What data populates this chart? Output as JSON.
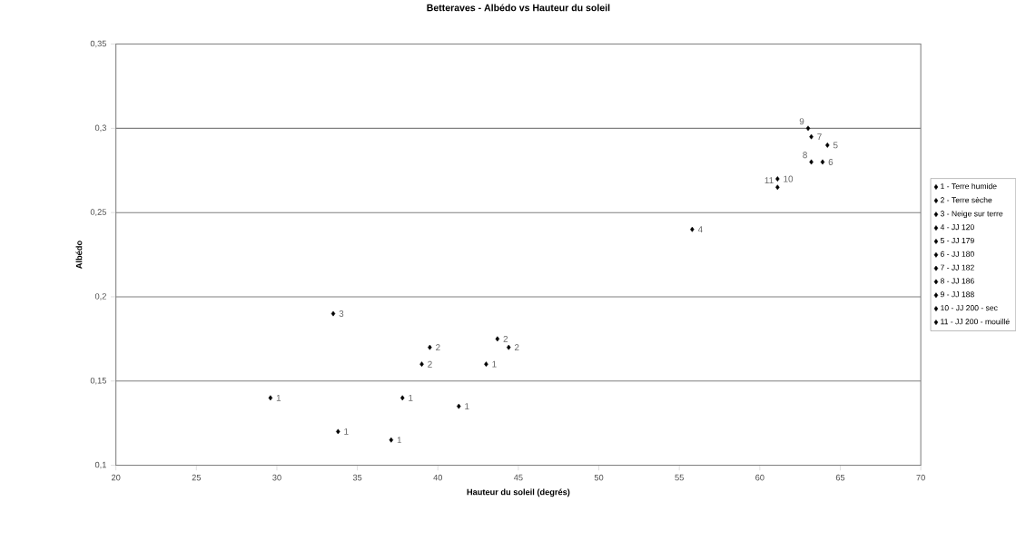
{
  "chart_data": {
    "type": "scatter",
    "title": "Betteraves - Albédo vs Hauteur du soleil",
    "xlabel": "Hauteur du soleil (degrés)",
    "ylabel": "Albédo",
    "xlim": [
      20,
      70
    ],
    "xticks": [
      20,
      25,
      30,
      35,
      40,
      45,
      50,
      55,
      60,
      65,
      70
    ],
    "ylim": [
      0.1,
      0.35
    ],
    "yticks": [
      {
        "value": 0.1,
        "label": "0,1"
      },
      {
        "value": 0.15,
        "label": "0,15"
      },
      {
        "value": 0.2,
        "label": "0,2"
      },
      {
        "value": 0.25,
        "label": "0,25"
      },
      {
        "value": 0.3,
        "label": "0,3"
      },
      {
        "value": 0.35,
        "label": "0,35"
      }
    ],
    "grid": "y",
    "legend": "right",
    "marker": "diamond",
    "series": [
      {
        "name": "1 - Terre humide",
        "color": "#000000",
        "x": [
          29.6,
          33.8,
          37.1,
          37.8,
          41.3,
          43.0
        ],
        "values": [
          0.14,
          0.12,
          0.115,
          0.14,
          0.135,
          0.16
        ]
      },
      {
        "name": "2 - Terre sèche",
        "color": "#000000",
        "x": [
          39.0,
          39.5,
          43.7,
          44.4
        ],
        "values": [
          0.16,
          0.17,
          0.175,
          0.17
        ]
      },
      {
        "name": "3 - Neige sur terre",
        "color": "#000000",
        "x": [
          33.5
        ],
        "values": [
          0.19
        ]
      },
      {
        "name": "4 - JJ 120",
        "color": "#000000",
        "x": [
          55.8
        ],
        "values": [
          0.24
        ]
      },
      {
        "name": "5 - JJ 179",
        "color": "#000000",
        "x": [
          64.2
        ],
        "values": [
          0.29
        ]
      },
      {
        "name": "6 - JJ 180",
        "color": "#000000",
        "x": [
          63.9
        ],
        "values": [
          0.28
        ]
      },
      {
        "name": "7 - JJ 182",
        "color": "#000000",
        "x": [
          63.2
        ],
        "values": [
          0.295
        ]
      },
      {
        "name": "8 - JJ 186",
        "color": "#000000",
        "x": [
          63.2
        ],
        "values": [
          0.28
        ]
      },
      {
        "name": "9 - JJ 188",
        "color": "#000000",
        "x": [
          63.0
        ],
        "values": [
          0.3
        ]
      },
      {
        "name": "10 - JJ 200 - sec",
        "color": "#000000",
        "x": [
          61.1
        ],
        "values": [
          0.27
        ]
      },
      {
        "name": "11 - JJ 200 - mouillé",
        "color": "#000000",
        "x": [
          61.1
        ],
        "values": [
          0.265
        ]
      }
    ],
    "annotations": [
      {
        "text": "1",
        "x": 29.6,
        "y": 0.14
      },
      {
        "text": "1",
        "x": 33.8,
        "y": 0.12
      },
      {
        "text": "1",
        "x": 37.1,
        "y": 0.115
      },
      {
        "text": "1",
        "x": 37.8,
        "y": 0.14
      },
      {
        "text": "1",
        "x": 41.3,
        "y": 0.135
      },
      {
        "text": "1",
        "x": 43.0,
        "y": 0.16
      },
      {
        "text": "2",
        "x": 39.0,
        "y": 0.16
      },
      {
        "text": "2",
        "x": 39.5,
        "y": 0.17
      },
      {
        "text": "2",
        "x": 43.7,
        "y": 0.175
      },
      {
        "text": "2",
        "x": 44.4,
        "y": 0.17
      },
      {
        "text": "3",
        "x": 33.5,
        "y": 0.19
      },
      {
        "text": "4",
        "x": 55.8,
        "y": 0.24
      },
      {
        "text": "5",
        "x": 64.2,
        "y": 0.29
      },
      {
        "text": "6",
        "x": 63.9,
        "y": 0.28
      },
      {
        "text": "7",
        "x": 63.2,
        "y": 0.295
      },
      {
        "text": "8",
        "x": 63.2,
        "y": 0.28
      },
      {
        "text": "9",
        "x": 63.0,
        "y": 0.3
      },
      {
        "text": "10",
        "x": 61.1,
        "y": 0.27
      },
      {
        "text": "11",
        "x": 61.1,
        "y": 0.265
      }
    ]
  }
}
